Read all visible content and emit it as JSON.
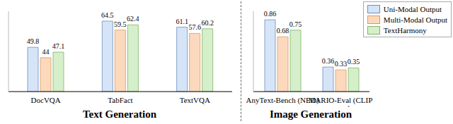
{
  "chart_data": [
    {
      "type": "bar",
      "title": "Text Generation",
      "categories": [
        "DocVQA",
        "TabFact",
        "TextVQA"
      ],
      "series": [
        {
          "name": "Uni-Modal Output",
          "color": "#d6e4f7",
          "values": [
            49.8,
            64.5,
            61.1
          ]
        },
        {
          "name": "Multi-Modal Output",
          "color": "#fcd9bd",
          "values": [
            44.0,
            59.5,
            57.6
          ]
        },
        {
          "name": "TextHarmony",
          "color": "#d4efc9",
          "values": [
            47.1,
            62.4,
            60.2
          ]
        }
      ],
      "ylim": [
        25,
        70
      ],
      "data_labels": true,
      "tick_labels": "x"
    },
    {
      "type": "bar",
      "title": "Image Generation",
      "categories": [
        "AnyText-Bench (NED)",
        "MARIO-Eval (CLIP score)"
      ],
      "series": [
        {
          "name": "Uni-Modal Output",
          "color": "#d6e4f7",
          "values": [
            0.86,
            0.36
          ]
        },
        {
          "name": "Multi-Modal Output",
          "color": "#fcd9bd",
          "values": [
            0.68,
            0.33
          ]
        },
        {
          "name": "TextHarmony",
          "color": "#d4efc9",
          "values": [
            0.75,
            0.35
          ]
        }
      ],
      "ylim": [
        0.1,
        0.95
      ],
      "data_labels": true,
      "tick_labels": "x",
      "legend": "upper right"
    }
  ]
}
